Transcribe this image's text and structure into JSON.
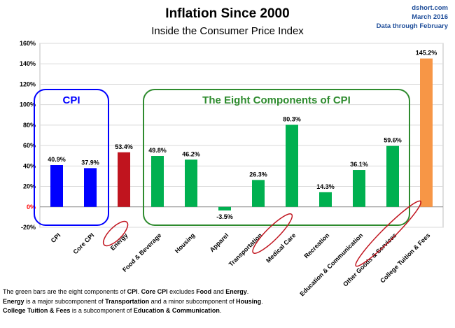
{
  "header": {
    "title": "Inflation Since 2000",
    "subtitle": "Inside the Consumer Price Index",
    "source": [
      "dshort.com",
      "March 2016",
      "Data through February"
    ]
  },
  "chart_data": {
    "type": "bar",
    "title": "Inflation Since 2000",
    "subtitle": "Inside the Consumer Price Index",
    "categories": [
      "CPI",
      "Core CPI",
      "Energy",
      "Food & Beverage",
      "Housing",
      "Apparel",
      "Transportation",
      "Medical Care",
      "Recreation",
      "Education & Communication",
      "Other Goods & Services",
      "College Tuition & Fees"
    ],
    "values": [
      40.9,
      37.9,
      53.4,
      49.8,
      46.2,
      -3.5,
      26.3,
      80.3,
      14.3,
      36.1,
      59.6,
      145.2
    ],
    "value_labels": [
      "40.9%",
      "37.9%",
      "53.4%",
      "49.8%",
      "46.2%",
      "-3.5%",
      "26.3%",
      "80.3%",
      "14.3%",
      "36.1%",
      "59.6%",
      "145.2%"
    ],
    "bar_colors": [
      "#0000ff",
      "#0000ff",
      "#c0141e",
      "#00b050",
      "#00b050",
      "#00b050",
      "#00b050",
      "#00b050",
      "#00b050",
      "#00b050",
      "#00b050",
      "#f79646"
    ],
    "circled_categories": [
      "Energy",
      "Medical Care",
      "College Tuition & Fees"
    ],
    "ylim": [
      -20,
      160
    ],
    "yticks": [
      -20,
      0,
      20,
      40,
      60,
      80,
      100,
      120,
      140,
      160
    ],
    "ytick_labels": [
      "-20%",
      "0%",
      "20%",
      "40%",
      "60%",
      "80%",
      "100%",
      "120%",
      "140%",
      "160%"
    ],
    "zero_tick_color": "#ff0000",
    "grid": true,
    "groups": [
      {
        "label": "CPI",
        "color": "#0000ff",
        "from": 0,
        "to": 1
      },
      {
        "label": "The Eight Components of CPI",
        "color": "#2e8b2e",
        "from": 3,
        "to": 10
      }
    ],
    "circle_color": "#c0141e"
  },
  "footnotes": [
    [
      {
        "t": "The green bars are the eight components of ",
        "b": false
      },
      {
        "t": "CPI",
        "b": true
      },
      {
        "t": ". ",
        "b": false
      },
      {
        "t": "Core CPI",
        "b": true
      },
      {
        "t": " excludes ",
        "b": false
      },
      {
        "t": "Food",
        "b": true
      },
      {
        "t": " and ",
        "b": false
      },
      {
        "t": "Energy",
        "b": true
      },
      {
        "t": ".",
        "b": false
      }
    ],
    [
      {
        "t": "Energy",
        "b": true
      },
      {
        "t": " is a major subcomponent of ",
        "b": false
      },
      {
        "t": "Transportation",
        "b": true
      },
      {
        "t": " and a minor subcomponent of ",
        "b": false
      },
      {
        "t": "Housing",
        "b": true
      },
      {
        "t": ".",
        "b": false
      }
    ],
    [
      {
        "t": "College Tuition & Fees",
        "b": true
      },
      {
        "t": " is a subcomponent of ",
        "b": false
      },
      {
        "t": "Education & Communication",
        "b": true
      },
      {
        "t": ".",
        "b": false
      }
    ]
  ]
}
